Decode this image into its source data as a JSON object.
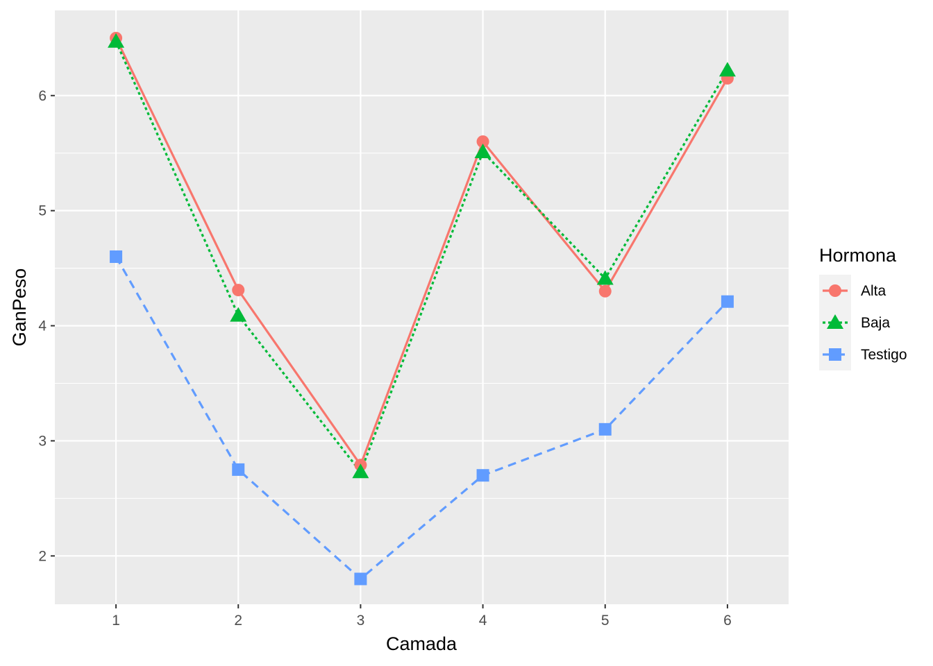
{
  "chart_data": {
    "type": "line",
    "title": "",
    "xlabel": "Camada",
    "ylabel": "GanPeso",
    "x": [
      1,
      2,
      3,
      4,
      5,
      6
    ],
    "x_tick_labels": [
      "1",
      "2",
      "3",
      "4",
      "5",
      "6"
    ],
    "y_ticks": [
      2,
      3,
      4,
      5,
      6
    ],
    "y_tick_labels": [
      "2",
      "3",
      "4",
      "5",
      "6"
    ],
    "xlim": [
      0.5,
      6.5
    ],
    "ylim": [
      1.58,
      6.74
    ],
    "grid": true,
    "legend": {
      "title": "Hormona",
      "position": "right"
    },
    "series": [
      {
        "name": "Alta",
        "values": [
          6.5,
          4.31,
          2.79,
          5.6,
          4.3,
          6.15
        ],
        "color": "#F8766D",
        "marker": "circle",
        "linestyle": "solid"
      },
      {
        "name": "Baja",
        "values": [
          6.47,
          4.09,
          2.73,
          5.51,
          4.41,
          6.22
        ],
        "color": "#00BA38",
        "marker": "triangle",
        "linestyle": "dotted"
      },
      {
        "name": "Testigo",
        "values": [
          4.6,
          2.75,
          1.8,
          2.7,
          3.1,
          4.21
        ],
        "color": "#619CFF",
        "marker": "square",
        "linestyle": "dashed"
      }
    ],
    "panel_background": "#EBEBEB",
    "gridline_color": "#FFFFFF"
  }
}
